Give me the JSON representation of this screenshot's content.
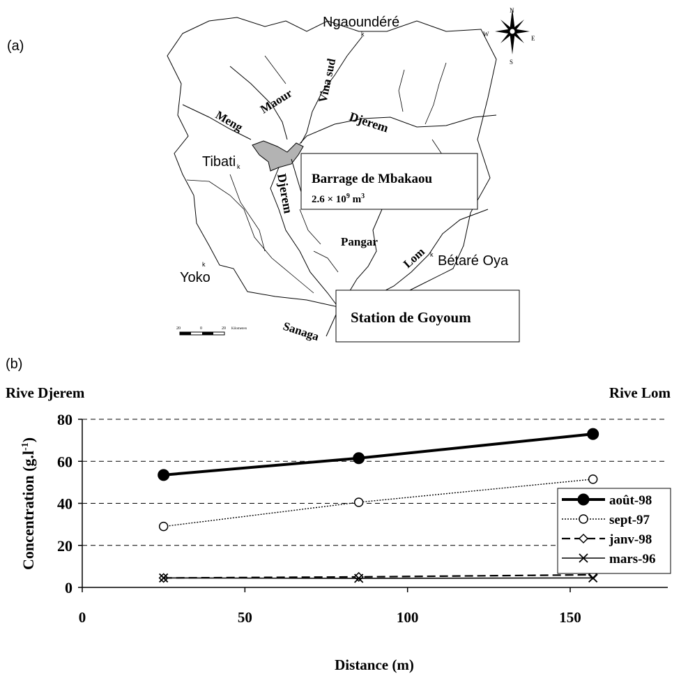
{
  "panel_a": {
    "label": "(a)",
    "towns": {
      "ngaoundere": "Ngaoundéré",
      "tibati": "Tibati",
      "yoko": "Yoko",
      "betare_oya": "Bétaré Oya"
    },
    "rivers": {
      "maour": "Maour",
      "vina_sud": "Vina sud",
      "meng": "Meng",
      "djerem_north": "Djerem",
      "djerem_south": "Djerem",
      "pangar": "Pangar",
      "lom": "Lom",
      "sanaga": "Sanaga"
    },
    "dam_title": "Barrage de Mbakaou",
    "dam_volume": "2.6 × 10",
    "dam_volume_exp": "9",
    "dam_volume_unit": " m",
    "dam_volume_unit_exp": "3",
    "station": "Station de Goyoum",
    "compass": {
      "n": "N",
      "s": "S",
      "e": "E",
      "w": "W"
    },
    "scale": {
      "left": "20",
      "mid": "0",
      "right": "20",
      "unit": "Kilometers"
    },
    "town_marker": "k"
  },
  "panel_b": {
    "label": "(b)",
    "left_bank": "Rive Djerem",
    "right_bank": "Rive Lom"
  },
  "chart_data": {
    "type": "line",
    "xlabel": "Distance (m)",
    "ylabel": "Concentration (g.l",
    "ylabel_exp": "-1",
    "ylabel_close": ")",
    "xlim": [
      0,
      180
    ],
    "ylim": [
      0,
      80
    ],
    "xticks": [
      0,
      50,
      100,
      150
    ],
    "yticks": [
      0,
      20,
      40,
      60,
      80
    ],
    "grid": "horizontal dashed",
    "legend_position": "right",
    "series": [
      {
        "name": "août-98",
        "marker": "filled-circle",
        "line": "thick-solid",
        "x": [
          25,
          85,
          157
        ],
        "y": [
          53.5,
          61.5,
          73
        ]
      },
      {
        "name": "sept-97",
        "marker": "open-circle",
        "line": "dotted",
        "x": [
          25,
          85,
          157
        ],
        "y": [
          29,
          40.5,
          51.5
        ]
      },
      {
        "name": "janv-98",
        "marker": "open-diamond",
        "line": "dashed",
        "x": [
          25,
          85,
          157
        ],
        "y": [
          4.5,
          5,
          6
        ]
      },
      {
        "name": "mars-96",
        "marker": "x-cross",
        "line": "thin-solid",
        "x": [
          25,
          85,
          157
        ],
        "y": [
          4.5,
          4.3,
          4.5
        ]
      }
    ]
  }
}
